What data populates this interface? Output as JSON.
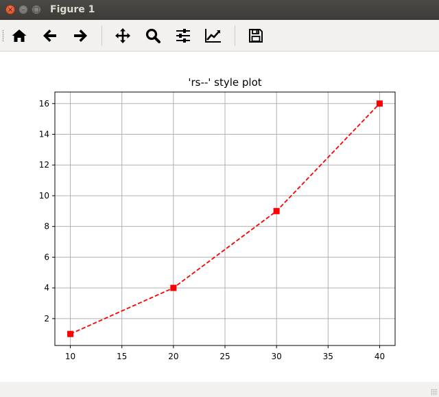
{
  "window": {
    "title": "Figure 1"
  },
  "toolbar": {
    "buttons": [
      {
        "name": "home-button",
        "icon": "home-icon"
      },
      {
        "name": "back-button",
        "icon": "arrow-left-icon"
      },
      {
        "name": "forward-button",
        "icon": "arrow-right-icon"
      },
      {
        "name": "pan-button",
        "icon": "move-icon"
      },
      {
        "name": "zoom-button",
        "icon": "search-icon"
      },
      {
        "name": "subplots-button",
        "icon": "sliders-icon"
      },
      {
        "name": "edit-axes-button",
        "icon": "chart-line-icon"
      },
      {
        "name": "save-button",
        "icon": "floppy-disk-icon"
      }
    ]
  },
  "chart_data": {
    "type": "line",
    "title": "'rs--' style plot",
    "xlabel": "",
    "ylabel": "",
    "x": [
      10,
      20,
      30,
      40
    ],
    "series": [
      {
        "values": [
          1,
          4,
          9,
          16
        ],
        "color": "#ff0000",
        "line_style": "dashed",
        "marker": "square"
      }
    ],
    "xlim": [
      8.5,
      41.5
    ],
    "ylim": [
      0.25,
      16.75
    ],
    "xticks": [
      "10",
      "15",
      "20",
      "25",
      "30",
      "35",
      "40"
    ],
    "yticks": [
      "2",
      "4",
      "6",
      "8",
      "10",
      "12",
      "14",
      "16"
    ],
    "grid": true
  }
}
